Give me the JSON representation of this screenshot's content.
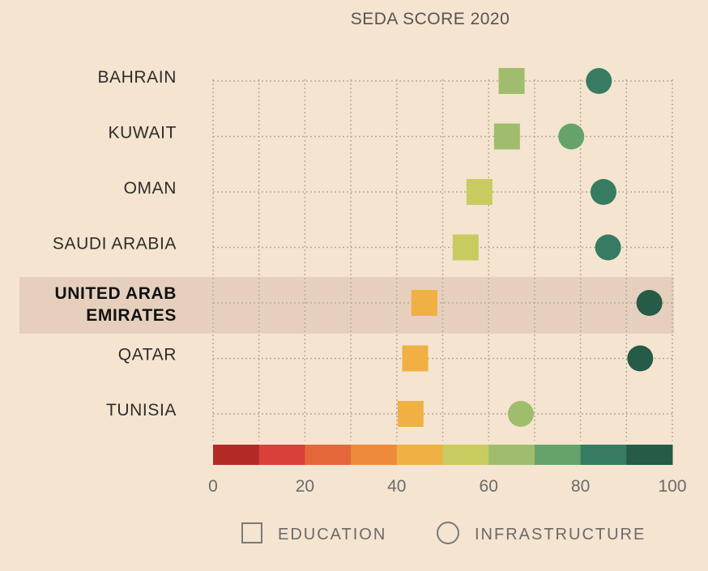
{
  "chart_data": {
    "type": "scatter",
    "title": "SEDA SCORE 2020",
    "categories": [
      "BAHRAIN",
      "KUWAIT",
      "OMAN",
      "SAUDI ARABIA",
      "UNITED ARAB EMIRATES",
      "QATAR",
      "TUNISIA"
    ],
    "category_display": [
      [
        "BAHRAIN"
      ],
      [
        "KUWAIT"
      ],
      [
        "OMAN"
      ],
      [
        "SAUDI ARABIA"
      ],
      [
        "UNITED ARAB",
        "EMIRATES"
      ],
      [
        "QATAR"
      ],
      [
        "TUNISIA"
      ]
    ],
    "highlight_category": "UNITED ARAB EMIRATES",
    "series": [
      {
        "name": "EDUCATION",
        "marker": "square",
        "values": [
          65,
          64,
          58,
          55,
          46,
          44,
          43
        ]
      },
      {
        "name": "INFRASTRUCTURE",
        "marker": "circle",
        "values": [
          84,
          78,
          85,
          86,
          95,
          93,
          67
        ]
      }
    ],
    "xlim": [
      0,
      100
    ],
    "xticks": [
      0,
      20,
      40,
      60,
      80,
      100
    ],
    "grid": true,
    "legend_position": "bottom",
    "color_scale": [
      "#b22a25",
      "#d9403a",
      "#e4673a",
      "#ee8a3c",
      "#f0b043",
      "#c8cc60",
      "#9fbd6c",
      "#66a36a",
      "#377c62",
      "#255b47"
    ],
    "background": "#f5e4cf",
    "highlight_color": "#e6d0bd",
    "text_color": "#2d2d2d",
    "tick_color": "#6b6b6b"
  }
}
